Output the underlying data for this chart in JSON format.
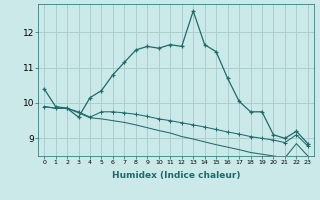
{
  "xlabel": "Humidex (Indice chaleur)",
  "bg_color": "#cce9ea",
  "grid_color": "#aacfcf",
  "line_color": "#1e6b6b",
  "x_values": [
    0,
    1,
    2,
    3,
    4,
    5,
    6,
    7,
    8,
    9,
    10,
    11,
    12,
    13,
    14,
    15,
    16,
    17,
    18,
    19,
    20,
    21,
    22,
    23
  ],
  "series1": [
    10.4,
    9.9,
    9.85,
    9.6,
    10.15,
    10.35,
    10.8,
    11.15,
    11.5,
    11.6,
    11.55,
    11.65,
    11.6,
    12.6,
    11.65,
    11.45,
    10.7,
    10.05,
    9.75,
    9.75,
    9.1,
    9.0,
    9.2,
    8.85
  ],
  "series2": [
    9.9,
    9.85,
    9.85,
    9.75,
    9.6,
    9.75,
    9.75,
    9.72,
    9.68,
    9.62,
    9.55,
    9.5,
    9.44,
    9.38,
    9.32,
    9.25,
    9.18,
    9.12,
    9.05,
    9.0,
    8.95,
    8.88,
    9.1,
    8.78
  ],
  "series3": [
    9.9,
    9.85,
    9.85,
    9.72,
    9.58,
    9.55,
    9.5,
    9.45,
    9.38,
    9.3,
    9.22,
    9.15,
    9.05,
    8.98,
    8.9,
    8.82,
    8.75,
    8.68,
    8.6,
    8.55,
    8.5,
    8.45,
    8.85,
    8.5
  ],
  "ylim": [
    8.5,
    12.8
  ],
  "yticks": [
    9,
    10,
    11,
    12
  ],
  "xlim": [
    -0.5,
    23.5
  ],
  "xticks": [
    0,
    1,
    2,
    3,
    4,
    5,
    6,
    7,
    8,
    9,
    10,
    11,
    12,
    13,
    14,
    15,
    16,
    17,
    18,
    19,
    20,
    21,
    22,
    23
  ]
}
